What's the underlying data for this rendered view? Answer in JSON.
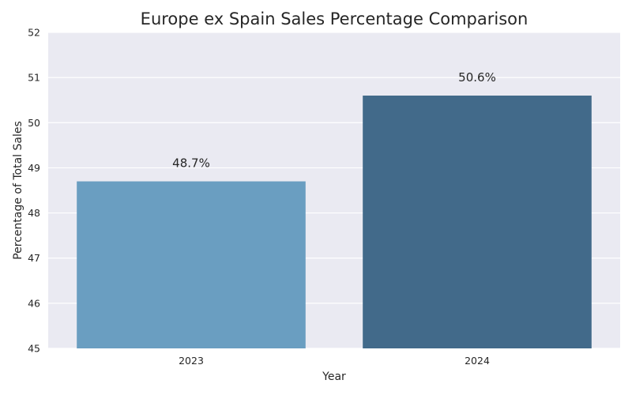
{
  "chart_data": {
    "type": "bar",
    "title": "Europe ex Spain Sales Percentage Comparison",
    "xlabel": "Year",
    "ylabel": "Percentage of Total Sales",
    "categories": [
      "2023",
      "2024"
    ],
    "values": [
      48.7,
      50.6
    ],
    "data_labels": [
      "48.7%",
      "50.6%"
    ],
    "ylim": [
      45,
      52
    ],
    "yticks": [
      45,
      46,
      47,
      48,
      49,
      50,
      51,
      52
    ],
    "ytick_labels": [
      "45",
      "46",
      "47",
      "48",
      "49",
      "50",
      "51",
      "52"
    ],
    "grid": true,
    "colors": {
      "background": "#eaeaf2",
      "grid": "#ffffff",
      "bars": [
        "#6a9ec1",
        "#426a8a"
      ]
    }
  }
}
